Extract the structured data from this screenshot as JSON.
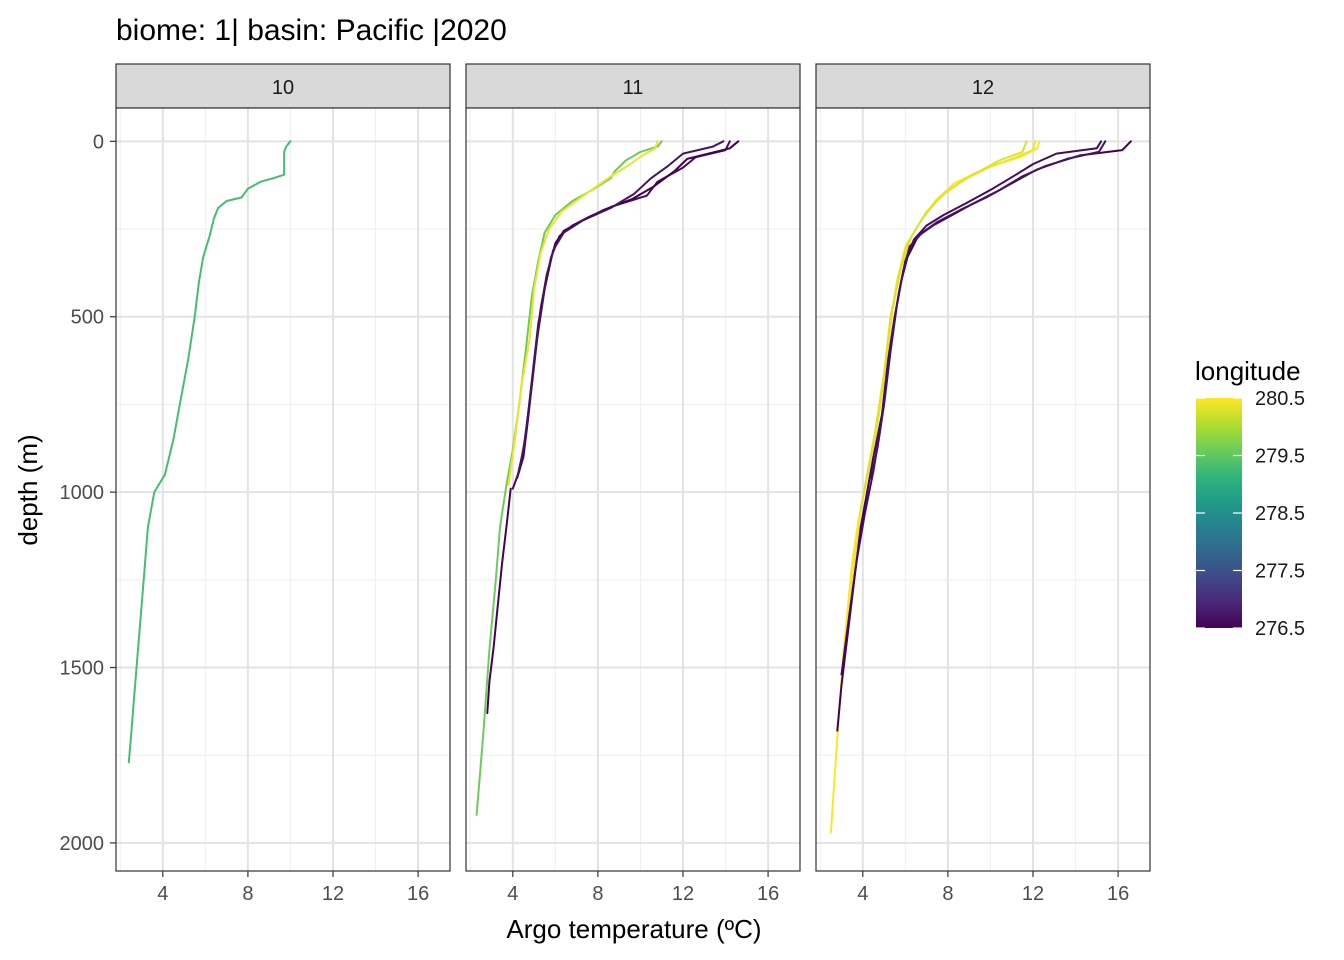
{
  "chart_data": {
    "type": "line",
    "title": "biome: 1| basin: Pacific |2020",
    "xlabel": "Argo temperature (ºC)",
    "ylabel": "depth (m)",
    "xlim": [
      1.8,
      17.5
    ],
    "ylim": [
      2080,
      -95
    ],
    "y_reversed": true,
    "x_ticks": [
      4,
      8,
      12,
      16
    ],
    "y_ticks": [
      0,
      500,
      1000,
      1500,
      2000
    ],
    "grid": true,
    "facets": [
      "10",
      "11",
      "12"
    ],
    "legend": {
      "title": "longitude",
      "position": "right",
      "min": 276.5,
      "max": 280.5,
      "ticks": [
        280.5,
        279.5,
        278.5,
        277.5,
        276.5
      ],
      "colors": [
        "#440154",
        "#482878",
        "#3E4A89",
        "#31688E",
        "#26828E",
        "#1F9E89",
        "#35B779",
        "#6DCD59",
        "#B4DE2C",
        "#FDE725"
      ]
    },
    "series": [
      {
        "facet": "10",
        "longitude": 279.3,
        "points": [
          [
            10.0,
            0
          ],
          [
            9.8,
            15
          ],
          [
            9.7,
            30
          ],
          [
            9.7,
            60
          ],
          [
            9.7,
            95
          ],
          [
            9.2,
            105
          ],
          [
            8.6,
            115
          ],
          [
            8.0,
            135
          ],
          [
            7.7,
            160
          ],
          [
            7.0,
            170
          ],
          [
            6.6,
            190
          ],
          [
            6.4,
            220
          ],
          [
            6.2,
            270
          ],
          [
            5.9,
            330
          ],
          [
            5.7,
            400
          ],
          [
            5.5,
            500
          ],
          [
            5.2,
            620
          ],
          [
            4.8,
            750
          ],
          [
            4.5,
            850
          ],
          [
            4.1,
            950
          ],
          [
            3.6,
            1000
          ],
          [
            3.3,
            1100
          ],
          [
            3.1,
            1250
          ],
          [
            2.9,
            1400
          ],
          [
            2.7,
            1550
          ],
          [
            2.5,
            1700
          ],
          [
            2.4,
            1770
          ]
        ]
      },
      {
        "facet": "11",
        "longitude": 279.6,
        "points": [
          [
            11.0,
            0
          ],
          [
            10.8,
            15
          ],
          [
            10.0,
            30
          ],
          [
            9.3,
            55
          ],
          [
            8.8,
            85
          ],
          [
            8.6,
            105
          ],
          [
            7.7,
            140
          ],
          [
            6.8,
            170
          ],
          [
            6.0,
            210
          ],
          [
            5.5,
            260
          ],
          [
            5.2,
            340
          ],
          [
            4.9,
            440
          ],
          [
            4.6,
            600
          ],
          [
            4.3,
            750
          ],
          [
            4.0,
            880
          ],
          [
            3.7,
            980
          ],
          [
            3.4,
            1100
          ],
          [
            3.2,
            1250
          ],
          [
            2.9,
            1450
          ],
          [
            2.6,
            1700
          ],
          [
            2.3,
            1920
          ]
        ]
      },
      {
        "facet": "11",
        "longitude": 280.4,
        "points": [
          [
            10.8,
            0
          ],
          [
            10.7,
            20
          ],
          [
            10.1,
            40
          ],
          [
            9.4,
            70
          ],
          [
            8.6,
            100
          ],
          [
            7.9,
            130
          ],
          [
            7.2,
            160
          ],
          [
            6.3,
            200
          ],
          [
            5.7,
            250
          ],
          [
            5.3,
            320
          ],
          [
            5.0,
            420
          ],
          [
            4.8,
            560
          ],
          [
            4.4,
            700
          ],
          [
            4.1,
            850
          ],
          [
            3.8,
            980
          ]
        ]
      },
      {
        "facet": "11",
        "longitude": 276.6,
        "points": [
          [
            14.2,
            0
          ],
          [
            14.0,
            25
          ],
          [
            12.6,
            45
          ],
          [
            12.0,
            75
          ],
          [
            10.8,
            115
          ],
          [
            10.3,
            155
          ],
          [
            8.7,
            185
          ],
          [
            7.6,
            215
          ],
          [
            6.8,
            240
          ],
          [
            6.2,
            270
          ],
          [
            5.8,
            330
          ],
          [
            5.5,
            420
          ],
          [
            5.2,
            520
          ],
          [
            4.9,
            680
          ],
          [
            4.6,
            840
          ],
          [
            4.3,
            940
          ],
          [
            4.0,
            990
          ]
        ]
      },
      {
        "facet": "11",
        "longitude": 276.5,
        "points": [
          [
            14.6,
            0
          ],
          [
            14.2,
            20
          ],
          [
            12.2,
            50
          ],
          [
            11.6,
            85
          ],
          [
            10.6,
            130
          ],
          [
            9.6,
            165
          ],
          [
            8.3,
            195
          ],
          [
            7.3,
            225
          ],
          [
            6.4,
            255
          ],
          [
            6.0,
            290
          ],
          [
            5.6,
            380
          ],
          [
            5.3,
            480
          ],
          [
            5.0,
            640
          ],
          [
            4.7,
            800
          ],
          [
            4.5,
            900
          ],
          [
            4.2,
            960
          ]
        ]
      },
      {
        "facet": "11",
        "longitude": 276.7,
        "points": [
          [
            13.9,
            0
          ],
          [
            13.4,
            15
          ],
          [
            12.0,
            35
          ],
          [
            11.3,
            70
          ],
          [
            10.5,
            105
          ],
          [
            9.7,
            150
          ],
          [
            8.6,
            190
          ],
          [
            7.3,
            225
          ],
          [
            6.4,
            260
          ],
          [
            5.9,
            310
          ],
          [
            5.5,
            420
          ],
          [
            5.1,
            580
          ],
          [
            4.8,
            740
          ],
          [
            4.5,
            880
          ],
          [
            4.2,
            960
          ]
        ]
      },
      {
        "facet": "11",
        "longitude": 276.5,
        "points": [
          [
            3.9,
            990
          ],
          [
            3.7,
            1100
          ],
          [
            3.5,
            1200
          ],
          [
            3.3,
            1320
          ],
          [
            3.1,
            1440
          ],
          [
            2.9,
            1540
          ],
          [
            2.8,
            1630
          ]
        ]
      },
      {
        "facet": "12",
        "longitude": 280.5,
        "points": [
          [
            12.3,
            0
          ],
          [
            12.2,
            20
          ],
          [
            11.4,
            45
          ],
          [
            10.3,
            65
          ],
          [
            9.3,
            90
          ],
          [
            8.3,
            120
          ],
          [
            7.4,
            170
          ],
          [
            6.7,
            230
          ],
          [
            6.0,
            300
          ],
          [
            5.6,
            400
          ],
          [
            5.3,
            520
          ],
          [
            5.0,
            680
          ],
          [
            4.6,
            840
          ],
          [
            4.2,
            960
          ],
          [
            3.8,
            1080
          ],
          [
            3.5,
            1200
          ],
          [
            3.1,
            1450
          ],
          [
            2.8,
            1700
          ],
          [
            2.5,
            1970
          ]
        ]
      },
      {
        "facet": "12",
        "longitude": 280.4,
        "points": [
          [
            12.1,
            0
          ],
          [
            12.0,
            25
          ],
          [
            11.0,
            50
          ],
          [
            9.9,
            75
          ],
          [
            8.9,
            105
          ],
          [
            7.9,
            145
          ],
          [
            7.0,
            200
          ],
          [
            6.3,
            270
          ],
          [
            5.8,
            360
          ],
          [
            5.4,
            480
          ],
          [
            5.1,
            640
          ],
          [
            4.7,
            800
          ],
          [
            4.3,
            930
          ],
          [
            3.9,
            1050
          ],
          [
            3.6,
            1200
          ],
          [
            3.3,
            1380
          ],
          [
            3.1,
            1500
          ]
        ]
      },
      {
        "facet": "12",
        "longitude": 280.3,
        "points": [
          [
            11.7,
            0
          ],
          [
            11.5,
            30
          ],
          [
            10.4,
            55
          ],
          [
            9.5,
            85
          ],
          [
            8.6,
            115
          ],
          [
            7.6,
            160
          ],
          [
            6.8,
            220
          ],
          [
            6.1,
            290
          ],
          [
            5.7,
            380
          ],
          [
            5.3,
            500
          ],
          [
            5.0,
            660
          ],
          [
            4.6,
            820
          ],
          [
            4.2,
            950
          ],
          [
            3.9,
            1050
          ]
        ]
      },
      {
        "facet": "12",
        "longitude": 276.5,
        "points": [
          [
            16.6,
            0
          ],
          [
            16.2,
            25
          ],
          [
            14.2,
            40
          ],
          [
            12.6,
            70
          ],
          [
            11.5,
            100
          ],
          [
            10.4,
            140
          ],
          [
            9.1,
            180
          ],
          [
            8.2,
            210
          ],
          [
            7.3,
            240
          ],
          [
            6.6,
            270
          ],
          [
            6.1,
            330
          ],
          [
            5.8,
            400
          ],
          [
            5.5,
            500
          ],
          [
            5.2,
            620
          ],
          [
            4.9,
            780
          ],
          [
            4.5,
            900
          ],
          [
            4.2,
            1000
          ],
          [
            3.9,
            1100
          ],
          [
            3.6,
            1250
          ],
          [
            3.3,
            1400
          ],
          [
            3.0,
            1550
          ],
          [
            2.8,
            1680
          ]
        ]
      },
      {
        "facet": "12",
        "longitude": 276.6,
        "points": [
          [
            15.2,
            0
          ],
          [
            15.0,
            20
          ],
          [
            13.1,
            35
          ],
          [
            12.0,
            65
          ],
          [
            11.2,
            95
          ],
          [
            10.1,
            135
          ],
          [
            8.9,
            175
          ],
          [
            7.8,
            210
          ],
          [
            7.0,
            240
          ],
          [
            6.4,
            280
          ],
          [
            6.0,
            340
          ],
          [
            5.7,
            430
          ],
          [
            5.4,
            540
          ],
          [
            5.1,
            690
          ],
          [
            4.8,
            830
          ],
          [
            4.5,
            940
          ],
          [
            4.1,
            1060
          ],
          [
            3.7,
            1200
          ],
          [
            3.3,
            1380
          ],
          [
            3.0,
            1520
          ]
        ]
      },
      {
        "facet": "12",
        "longitude": 276.7,
        "points": [
          [
            15.4,
            0
          ],
          [
            15.1,
            30
          ],
          [
            13.6,
            50
          ],
          [
            12.2,
            80
          ],
          [
            11.0,
            120
          ],
          [
            9.8,
            160
          ],
          [
            8.6,
            195
          ],
          [
            7.5,
            230
          ],
          [
            6.8,
            260
          ],
          [
            6.2,
            300
          ],
          [
            5.9,
            370
          ],
          [
            5.6,
            470
          ],
          [
            5.3,
            600
          ],
          [
            5.0,
            750
          ],
          [
            4.7,
            870
          ],
          [
            4.4,
            960
          ]
        ]
      }
    ]
  }
}
